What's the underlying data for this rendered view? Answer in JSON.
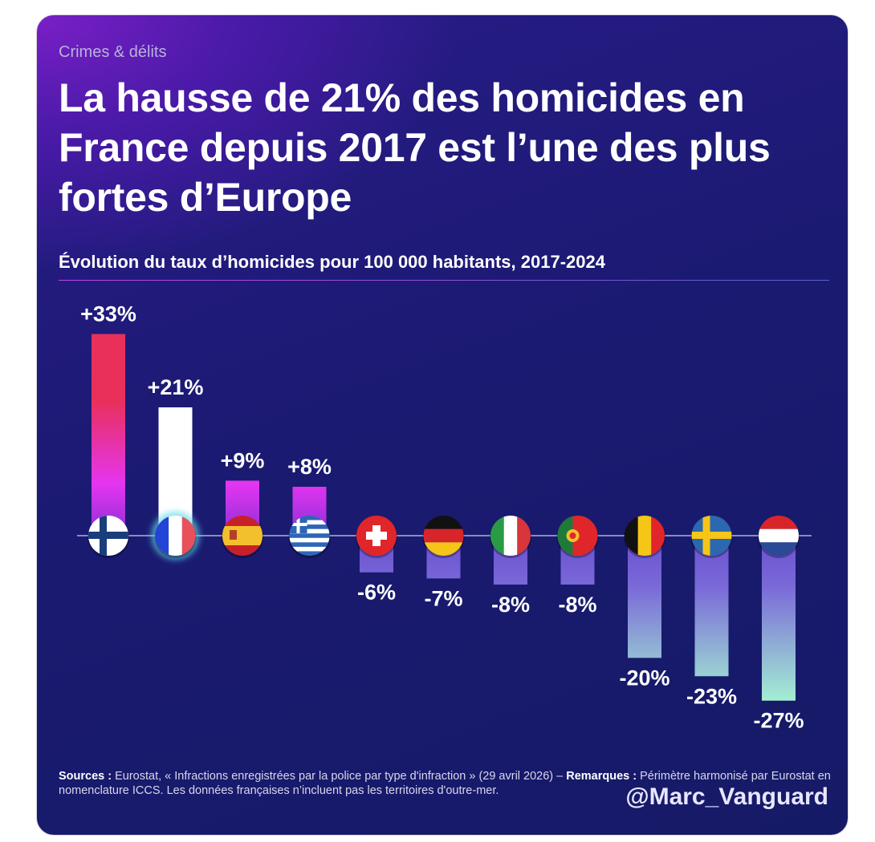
{
  "kicker": "Crimes & délits",
  "title": "La hausse de 21% des homicides en France depuis 2017 est l’une des plus fortes d’Europe",
  "footer": {
    "sources_label": "Sources :",
    "sources_text": " Eurostat, « Infractions enregistrées par la police par type d'infraction » (29 avril 2026) – ",
    "remarks_label": "Remarques :",
    "remarks_text": " Périmètre harmonisé par Eurostat en nomenclature ICCS. Les données françaises n’incluent pas les territoires d'outre-mer.",
    "handle": "@Marc_Vanguard"
  },
  "chart_data": {
    "type": "bar",
    "title": "Évolution du taux d’homicides pour 100 000 habitants, 2017-2024",
    "categories": [
      "flag-finland",
      "flag-france",
      "flag-spain",
      "flag-greece",
      "flag-switzerland",
      "flag-germany",
      "flag-italy",
      "flag-portugal",
      "flag-belgium",
      "flag-sweden",
      "flag-netherlands"
    ],
    "values": [
      33,
      21,
      9,
      8,
      -6,
      -7,
      -8,
      -8,
      -20,
      -23,
      -27
    ],
    "labels": [
      "+33%",
      "+21%",
      "+9%",
      "+8%",
      "-6%",
      "-7%",
      "-8%",
      "-8%",
      "-20%",
      "-23%",
      "-27%"
    ],
    "highlight": "flag-france",
    "colors": {
      "positive_top": "#e8305a",
      "positive_mid": "#e535f0",
      "positive_base": "#8a30d8",
      "highlight": "#ffffff",
      "negative_base": "#6a4fd0",
      "negative_end": "#a6f7d2"
    }
  }
}
